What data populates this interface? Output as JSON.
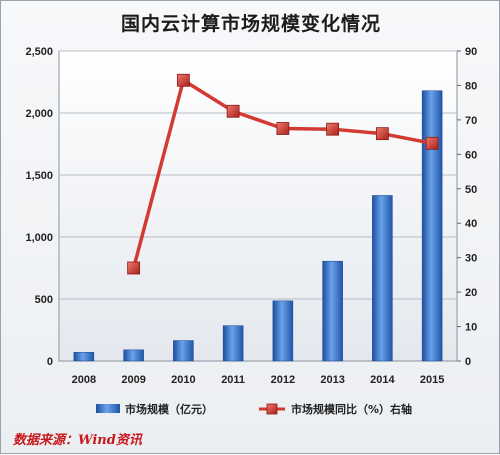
{
  "title": "国内云计算市场规模变化情况",
  "source": "数据来源：Wind资讯",
  "chart_data": {
    "type": "bar+line",
    "title": "国内云计算市场规模变化情况",
    "categories": [
      "2008",
      "2009",
      "2010",
      "2011",
      "2012",
      "2013",
      "2014",
      "2015"
    ],
    "series": [
      {
        "name": "市场规模（亿元）",
        "type": "bar",
        "axis": "left",
        "color": "#2f6cc4",
        "values": [
          70,
          90,
          165,
          285,
          485,
          805,
          1335,
          2180
        ]
      },
      {
        "name": "市场规模同比（%）右轴",
        "type": "line",
        "axis": "right",
        "color": "#d23a32",
        "marker_color": "#d23a32",
        "values": [
          null,
          27,
          81.5,
          72.5,
          67.5,
          67.3,
          66,
          63.2
        ]
      }
    ],
    "y_left": {
      "min": 0,
      "max": 2500,
      "step": 500,
      "ticks": [
        "0",
        "500",
        "1,000",
        "1,500",
        "2,000",
        "2,500"
      ]
    },
    "y_right": {
      "min": 0,
      "max": 90,
      "step": 10,
      "ticks": [
        "0",
        "10",
        "20",
        "30",
        "40",
        "50",
        "60",
        "70",
        "80",
        "90"
      ]
    },
    "grid": true,
    "legend_position": "bottom"
  }
}
